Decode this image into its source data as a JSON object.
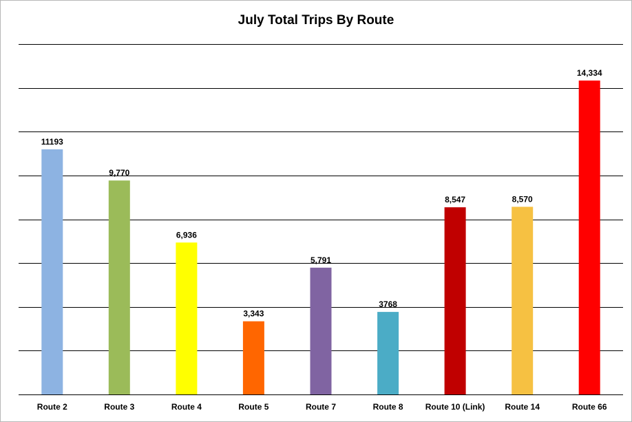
{
  "chart_data": {
    "type": "bar",
    "title": "July Total Trips By Route",
    "xlabel": "",
    "ylabel": "",
    "ylim": [
      0,
      16000
    ],
    "grid": true,
    "legend": "none",
    "categories": [
      "Route 2",
      "Route 3",
      "Route 4",
      "Route 5",
      "Route 7",
      "Route 8",
      "Route 10 (Link)",
      "Route 14",
      "Route 66"
    ],
    "values": [
      11193,
      9770,
      6936,
      3343,
      5791,
      3768,
      8547,
      8570,
      14334
    ],
    "data_labels": [
      "11193",
      "9,770",
      "6,936",
      "3,343",
      "5,791",
      "3768",
      "8,547",
      "8,570",
      "14,334"
    ],
    "colors": [
      "#8db3e2",
      "#9bbb59",
      "#ffff00",
      "#ff6600",
      "#8064a2",
      "#4bacc6",
      "#c00000",
      "#f6c142",
      "#ff0000"
    ]
  }
}
